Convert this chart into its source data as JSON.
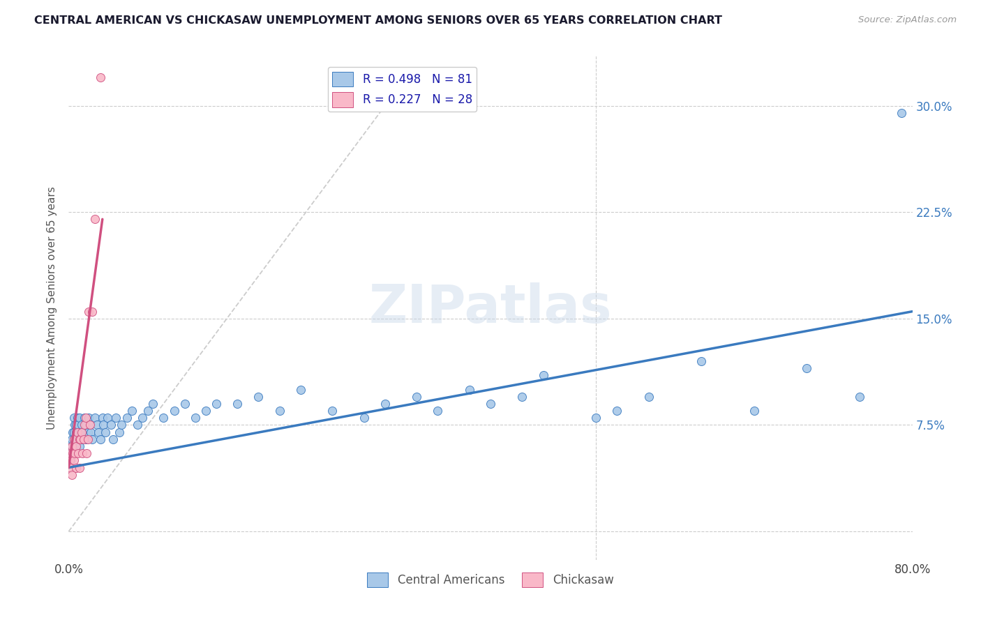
{
  "title": "CENTRAL AMERICAN VS CHICKASAW UNEMPLOYMENT AMONG SENIORS OVER 65 YEARS CORRELATION CHART",
  "source": "Source: ZipAtlas.com",
  "ylabel": "Unemployment Among Seniors over 65 years",
  "xlim": [
    0.0,
    0.8
  ],
  "ylim": [
    -0.02,
    0.335
  ],
  "yticks": [
    0.0,
    0.075,
    0.15,
    0.225,
    0.3
  ],
  "ytick_labels": [
    "",
    "7.5%",
    "15.0%",
    "22.5%",
    "30.0%"
  ],
  "xtick_labels_left": "0.0%",
  "xtick_labels_right": "80.0%",
  "background_color": "#ffffff",
  "watermark": "ZIPatlas",
  "legend_blue_label": "R = 0.498   N = 81",
  "legend_pink_label": "R = 0.227   N = 28",
  "blue_color": "#a8c8e8",
  "blue_line_color": "#3a7abf",
  "pink_color": "#f9b8c8",
  "pink_line_color": "#d05080",
  "diagonal_color": "#cccccc",
  "ca_x": [
    0.001,
    0.002,
    0.002,
    0.003,
    0.003,
    0.004,
    0.004,
    0.005,
    0.005,
    0.005,
    0.006,
    0.006,
    0.007,
    0.007,
    0.007,
    0.008,
    0.008,
    0.009,
    0.009,
    0.01,
    0.01,
    0.011,
    0.012,
    0.012,
    0.013,
    0.014,
    0.015,
    0.015,
    0.016,
    0.017,
    0.018,
    0.019,
    0.02,
    0.021,
    0.022,
    0.025,
    0.027,
    0.028,
    0.03,
    0.032,
    0.033,
    0.035,
    0.037,
    0.04,
    0.042,
    0.045,
    0.048,
    0.05,
    0.055,
    0.06,
    0.065,
    0.07,
    0.075,
    0.08,
    0.09,
    0.1,
    0.11,
    0.12,
    0.13,
    0.14,
    0.16,
    0.18,
    0.2,
    0.22,
    0.25,
    0.28,
    0.3,
    0.33,
    0.35,
    0.38,
    0.4,
    0.43,
    0.45,
    0.5,
    0.52,
    0.55,
    0.6,
    0.65,
    0.7,
    0.75,
    0.79
  ],
  "ca_y": [
    0.055,
    0.06,
    0.05,
    0.065,
    0.055,
    0.07,
    0.06,
    0.08,
    0.07,
    0.065,
    0.075,
    0.065,
    0.07,
    0.06,
    0.075,
    0.065,
    0.08,
    0.07,
    0.075,
    0.06,
    0.08,
    0.07,
    0.065,
    0.075,
    0.07,
    0.065,
    0.08,
    0.07,
    0.075,
    0.065,
    0.07,
    0.08,
    0.075,
    0.07,
    0.065,
    0.08,
    0.075,
    0.07,
    0.065,
    0.08,
    0.075,
    0.07,
    0.08,
    0.075,
    0.065,
    0.08,
    0.07,
    0.075,
    0.08,
    0.085,
    0.075,
    0.08,
    0.085,
    0.09,
    0.08,
    0.085,
    0.09,
    0.08,
    0.085,
    0.09,
    0.09,
    0.095,
    0.085,
    0.1,
    0.085,
    0.08,
    0.09,
    0.095,
    0.085,
    0.1,
    0.09,
    0.095,
    0.11,
    0.08,
    0.085,
    0.095,
    0.12,
    0.085,
    0.115,
    0.095,
    0.295
  ],
  "ck_x": [
    0.001,
    0.002,
    0.002,
    0.003,
    0.003,
    0.004,
    0.005,
    0.005,
    0.006,
    0.007,
    0.007,
    0.008,
    0.009,
    0.01,
    0.01,
    0.011,
    0.012,
    0.013,
    0.014,
    0.015,
    0.016,
    0.017,
    0.018,
    0.019,
    0.02,
    0.022,
    0.025,
    0.03
  ],
  "ck_y": [
    0.05,
    0.055,
    0.045,
    0.06,
    0.04,
    0.055,
    0.05,
    0.065,
    0.055,
    0.045,
    0.06,
    0.07,
    0.055,
    0.065,
    0.045,
    0.065,
    0.07,
    0.055,
    0.065,
    0.075,
    0.08,
    0.055,
    0.065,
    0.155,
    0.075,
    0.155,
    0.22,
    0.32
  ],
  "blue_trendline_x": [
    0.0,
    0.8
  ],
  "blue_trendline_y": [
    0.045,
    0.155
  ],
  "pink_trendline_x": [
    0.0,
    0.032
  ],
  "pink_trendline_y": [
    0.045,
    0.22
  ]
}
